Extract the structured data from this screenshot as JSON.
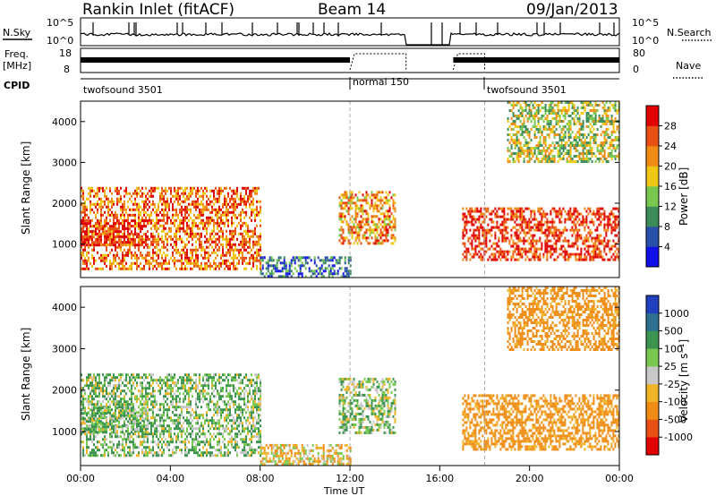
{
  "header": {
    "station": "Rankin Inlet (fitACF)",
    "beam": "Beam 14",
    "date": "09/Jan/2013"
  },
  "top_panels": {
    "nsky_label": "N.Sky",
    "nsky_ticks": [
      "10^5",
      "10^0"
    ],
    "nsearch_label": "N.Search",
    "nsearch_ticks": [
      "10^5",
      "10^0"
    ],
    "freq_label": "Freq.",
    "freq_unit": "[MHz]",
    "freq_ticks": [
      "18",
      "8"
    ],
    "nave_label": "Nave",
    "nave_ticks": [
      "80",
      "0"
    ],
    "cpid_label": "CPID",
    "modes": [
      {
        "label": "twofsound 3501",
        "start": 0,
        "end": 12
      },
      {
        "label": "normal 150",
        "start": 12,
        "end": 18
      },
      {
        "label": "twofsound 3501",
        "start": 18,
        "end": 24
      }
    ]
  },
  "axes": {
    "y_label": "Slant Range [km]",
    "y_ticks": [
      "1000",
      "2000",
      "3000",
      "4000"
    ],
    "x_label": "Time UT",
    "x_ticks": [
      "00:00",
      "04:00",
      "08:00",
      "12:00",
      "16:00",
      "20:00",
      "00:00"
    ]
  },
  "power_scale": {
    "label": "Power [dB]",
    "ticks": [
      "4",
      "8",
      "12",
      "16",
      "20",
      "24",
      "28"
    ],
    "colors": [
      "#1010e8",
      "#2850a8",
      "#3c8c5a",
      "#78c850",
      "#f0c814",
      "#f08c14",
      "#e85014",
      "#e00000"
    ]
  },
  "velocity_scale": {
    "label": "Velocity [m s⁻¹]",
    "ticks": [
      "1000",
      "500",
      "100",
      "25",
      "-25",
      "-100",
      "-500",
      "-1000"
    ],
    "colors": [
      "#2040c0",
      "#2e7090",
      "#3c9450",
      "#78c850",
      "#c8c8c8",
      "#f0b428",
      "#f08c14",
      "#e85014",
      "#e00000"
    ]
  },
  "chart_data": {
    "type": "heatmap",
    "title": "Rankin Inlet (fitACF)",
    "beam": "Beam 14",
    "date": "09/Jan/2013",
    "xlabel": "Time UT",
    "ylabel": "Slant Range [km]",
    "xlim": [
      0,
      24
    ],
    "ylim": [
      180,
      4500
    ],
    "power_db_range": [
      0,
      32
    ],
    "velocity_range": [
      -1000,
      1000
    ],
    "echo_regions": [
      {
        "t_start": 0.0,
        "t_end": 8.0,
        "range_km": [
          400,
          2400
        ],
        "power_db": 24,
        "velocity": 80
      },
      {
        "t_start": 0.0,
        "t_end": 3.0,
        "range_km": [
          1000,
          1600
        ],
        "power_db": 30,
        "velocity": 90
      },
      {
        "t_start": 8.0,
        "t_end": 12.0,
        "range_km": [
          200,
          700
        ],
        "power_db": 8,
        "velocity": -60
      },
      {
        "t_start": 11.5,
        "t_end": 14.0,
        "range_km": [
          1000,
          2300
        ],
        "power_db": 22,
        "velocity": 60
      },
      {
        "t_start": 17.0,
        "t_end": 24.0,
        "range_km": [
          600,
          1900
        ],
        "power_db": 28,
        "velocity": -180
      },
      {
        "t_start": 19.0,
        "t_end": 24.0,
        "range_km": [
          3000,
          4500
        ],
        "power_db": 16,
        "velocity": -200
      }
    ],
    "data_gap_ut": [
      14.5,
      16.5
    ],
    "mode_changes_ut": [
      12.0,
      18.0
    ]
  }
}
